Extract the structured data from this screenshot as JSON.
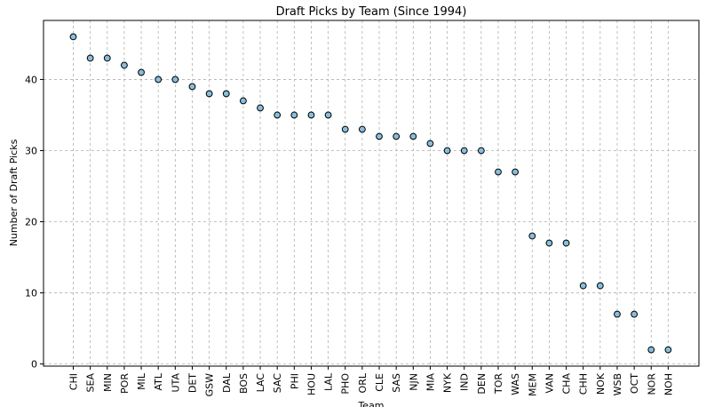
{
  "chart_data": {
    "type": "scatter",
    "title": "Draft Picks by Team (Since 1994)",
    "xlabel": "Team",
    "ylabel": "Number of Draft Picks",
    "categories": [
      "CHI",
      "SEA",
      "MIN",
      "POR",
      "MIL",
      "ATL",
      "UTA",
      "DET",
      "GSW",
      "DAL",
      "BOS",
      "LAC",
      "SAC",
      "PHI",
      "HOU",
      "LAL",
      "PHO",
      "ORL",
      "CLE",
      "SAS",
      "NJN",
      "MIA",
      "NYK",
      "IND",
      "DEN",
      "TOR",
      "WAS",
      "MEM",
      "VAN",
      "CHA",
      "CHH",
      "NOK",
      "WSB",
      "OCT",
      "NOR",
      "NOH"
    ],
    "values": [
      46,
      43,
      43,
      42,
      41,
      40,
      40,
      39,
      38,
      38,
      37,
      36,
      35,
      35,
      35,
      35,
      33,
      33,
      32,
      32,
      32,
      31,
      30,
      30,
      30,
      27,
      27,
      18,
      17,
      17,
      11,
      11,
      7,
      7,
      2,
      2
    ],
    "ylim": [
      -0.3,
      48.3
    ],
    "yticks": [
      0,
      10,
      20,
      30,
      40
    ],
    "grid": true,
    "marker_color": "#87bedd"
  }
}
